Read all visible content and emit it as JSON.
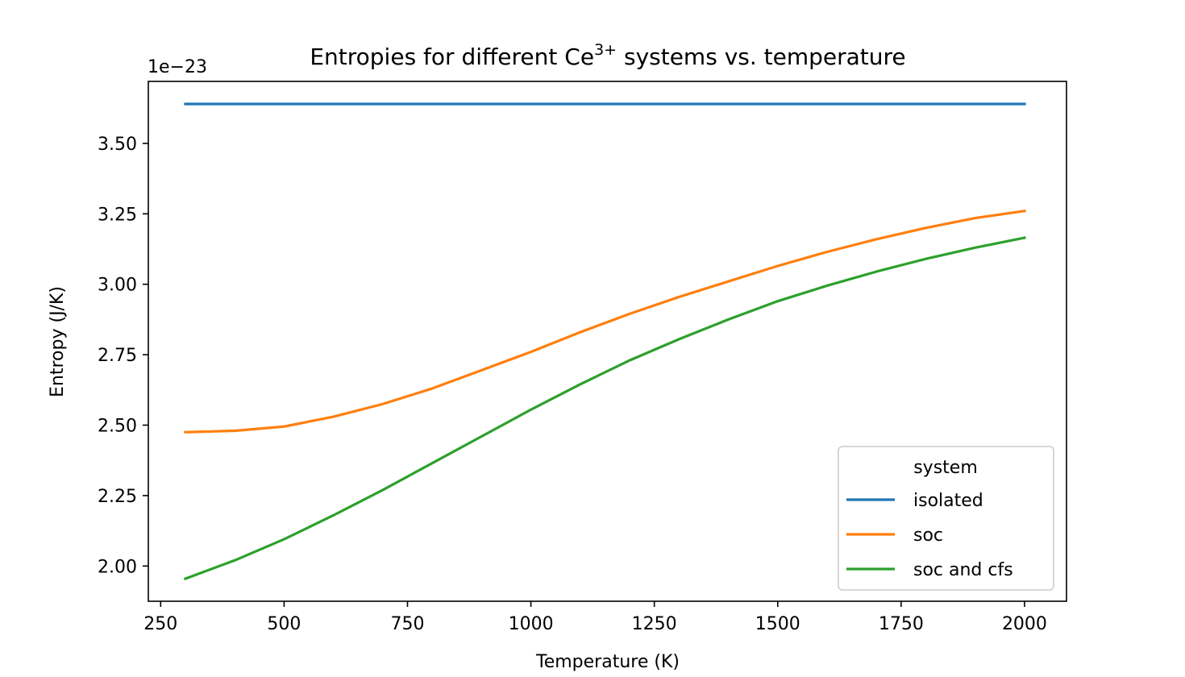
{
  "chart_data": {
    "type": "line",
    "title": "Entropies for different Ce",
    "title_superscript": "3+",
    "title_suffix": " systems vs. temperature",
    "xlabel": "Temperature (K)",
    "ylabel": "Entropy (J/K)",
    "offset_label": "1e−23",
    "xlim": [
      225,
      2085
    ],
    "ylim": [
      1.875,
      3.72
    ],
    "xticks": [
      250,
      500,
      750,
      1000,
      1250,
      1500,
      1750,
      2000
    ],
    "xtick_labels": [
      "250",
      "500",
      "750",
      "1000",
      "1250",
      "1500",
      "1750",
      "2000"
    ],
    "yticks": [
      2.0,
      2.25,
      2.5,
      2.75,
      3.0,
      3.25,
      3.5
    ],
    "ytick_labels": [
      "2.00",
      "2.25",
      "2.50",
      "2.75",
      "3.00",
      "3.25",
      "3.50"
    ],
    "grid": false,
    "legend": {
      "title": "system",
      "placement": "lower-right"
    },
    "x": [
      300,
      400,
      500,
      600,
      700,
      800,
      900,
      1000,
      1100,
      1200,
      1300,
      1400,
      1500,
      1600,
      1700,
      1800,
      1900,
      2000
    ],
    "series": [
      {
        "name": "isolated",
        "color": "#1f77b4",
        "values": [
          3.64,
          3.64,
          3.64,
          3.64,
          3.64,
          3.64,
          3.64,
          3.64,
          3.64,
          3.64,
          3.64,
          3.64,
          3.64,
          3.64,
          3.64,
          3.64,
          3.64,
          3.64
        ]
      },
      {
        "name": "soc",
        "color": "#ff7f0e",
        "values": [
          2.475,
          2.48,
          2.495,
          2.53,
          2.575,
          2.63,
          2.695,
          2.76,
          2.83,
          2.895,
          2.955,
          3.01,
          3.065,
          3.115,
          3.16,
          3.2,
          3.235,
          3.26
        ]
      },
      {
        "name": "soc and cfs",
        "color": "#2ca02c",
        "values": [
          1.955,
          2.02,
          2.095,
          2.18,
          2.27,
          2.365,
          2.46,
          2.555,
          2.645,
          2.73,
          2.805,
          2.875,
          2.94,
          2.995,
          3.045,
          3.09,
          3.13,
          3.165
        ]
      }
    ]
  }
}
